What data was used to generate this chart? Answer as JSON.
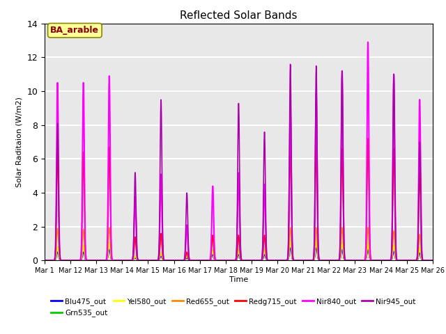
{
  "title": "Reflected Solar Bands",
  "xlabel": "Time",
  "ylabel": "Solar Raditaion (W/m2)",
  "ylim": [
    0,
    14
  ],
  "annotation_text": "BA_arable",
  "annotation_bg": "#ffff99",
  "annotation_border": "#888800",
  "annotation_text_color": "#8B0000",
  "background_color": "#e8e8e8",
  "grid_color": "#ffffff",
  "series": [
    {
      "label": "Blu475_out",
      "color": "#0000ff"
    },
    {
      "label": "Grn535_out",
      "color": "#00cc00"
    },
    {
      "label": "Yel580_out",
      "color": "#ffff00"
    },
    {
      "label": "Red655_out",
      "color": "#ff8800"
    },
    {
      "label": "Redg715_out",
      "color": "#ff0000"
    },
    {
      "label": "Nir840_out",
      "color": "#ff00ff"
    },
    {
      "label": "Nir945_out",
      "color": "#aa00aa"
    }
  ],
  "xtick_labels": [
    "Mar 1",
    "Mar 12",
    "Mar 13",
    "Mar 14",
    "Mar 15",
    "Mar 16",
    "Mar 17",
    "Mar 18",
    "Mar 19",
    "Mar 20",
    "Mar 21",
    "Mar 22",
    "Mar 23",
    "Mar 24",
    "Mar 25",
    "Mar 26"
  ],
  "day_peaks": [
    [
      0.5,
      0.8,
      0.8,
      1.9,
      6.5,
      10.5,
      8.1
    ],
    [
      0.5,
      0.9,
      0.9,
      1.85,
      6.4,
      10.5,
      0.0
    ],
    [
      0.65,
      1.05,
      1.05,
      1.95,
      6.7,
      10.9,
      0.0
    ],
    [
      0.15,
      0.25,
      0.25,
      1.3,
      1.4,
      3.8,
      5.2
    ],
    [
      0.25,
      0.45,
      0.45,
      1.5,
      1.6,
      5.1,
      9.5
    ],
    [
      0.15,
      0.25,
      0.25,
      0.45,
      0.5,
      2.1,
      4.0
    ],
    [
      0.35,
      0.6,
      0.6,
      1.4,
      1.5,
      4.4,
      0.0
    ],
    [
      0.35,
      0.6,
      0.6,
      1.4,
      1.5,
      5.2,
      9.3
    ],
    [
      0.35,
      0.6,
      0.6,
      1.4,
      1.5,
      4.5,
      7.6
    ],
    [
      0.75,
      1.2,
      1.2,
      1.95,
      6.9,
      9.3,
      11.6
    ],
    [
      0.75,
      1.2,
      1.2,
      1.95,
      6.9,
      9.9,
      11.5
    ],
    [
      0.65,
      1.05,
      1.05,
      1.95,
      6.6,
      11.2,
      11.2
    ],
    [
      0.65,
      1.0,
      1.0,
      1.95,
      7.2,
      12.9,
      0.0
    ],
    [
      0.55,
      0.9,
      0.9,
      1.75,
      6.6,
      11.0,
      11.0
    ],
    [
      0.45,
      0.75,
      0.75,
      1.55,
      5.3,
      9.5,
      7.0
    ]
  ]
}
